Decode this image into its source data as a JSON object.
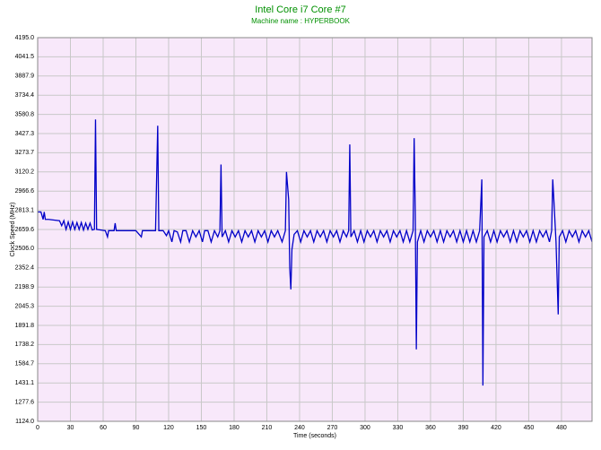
{
  "chart_data": {
    "type": "line",
    "title": "Intel Core i7 Core #7",
    "subtitle": "Machine name : HYPERBOOK",
    "x_label": "Time (seconds)",
    "y_label": "Clock Speed (MHz)",
    "color": "#0000c8",
    "grid": true,
    "xlim": [
      0,
      508
    ],
    "xticks": [
      0,
      30,
      60,
      90,
      120,
      150,
      180,
      210,
      240,
      270,
      300,
      330,
      360,
      390,
      420,
      450,
      480
    ],
    "ylim": [
      1124,
      4195
    ],
    "yticks": [
      {
        "value": 1124,
        "label": "1124.0"
      },
      1277.6,
      1431.1,
      1584.7,
      1738.2,
      1891.8,
      2045.3,
      2198.9,
      2352.4,
      {
        "value": 2506,
        "label": "2506.0"
      },
      2659.6,
      2813.1,
      2966.6,
      3120.2,
      3273.7,
      3427.3,
      3580.8,
      3734.4,
      3887.9,
      4041.5,
      {
        "value": 4195,
        "label": "4195.0"
      }
    ],
    "x": [
      0,
      3,
      5,
      6,
      7,
      10,
      15,
      20,
      22,
      24,
      26,
      28,
      30,
      32,
      34,
      36,
      38,
      40,
      42,
      44,
      46,
      48,
      50,
      52,
      53,
      54,
      58,
      62,
      64,
      65,
      70,
      71,
      72,
      80,
      90,
      95,
      96,
      100,
      108,
      110,
      111,
      115,
      118,
      120,
      123,
      125,
      128,
      131,
      133,
      136,
      139,
      142,
      145,
      148,
      151,
      153,
      156,
      159,
      162,
      165,
      167,
      168,
      169,
      172,
      175,
      178,
      181,
      184,
      187,
      190,
      193,
      196,
      199,
      202,
      205,
      208,
      211,
      214,
      217,
      220,
      224,
      227,
      228,
      230,
      231,
      232,
      233,
      235,
      238,
      241,
      244,
      247,
      250,
      253,
      256,
      259,
      262,
      265,
      268,
      271,
      274,
      277,
      280,
      283,
      285,
      286,
      287,
      290,
      293,
      296,
      299,
      302,
      305,
      308,
      311,
      314,
      317,
      320,
      323,
      326,
      329,
      332,
      335,
      338,
      341,
      344,
      345,
      346,
      347,
      348,
      351,
      354,
      357,
      360,
      363,
      366,
      369,
      372,
      375,
      378,
      381,
      384,
      387,
      390,
      393,
      396,
      399,
      402,
      405,
      407,
      408,
      409,
      412,
      415,
      418,
      421,
      424,
      427,
      430,
      433,
      436,
      439,
      442,
      445,
      448,
      451,
      454,
      457,
      460,
      463,
      466,
      469,
      471,
      472,
      473,
      475,
      477,
      478,
      481,
      484,
      487,
      490,
      493,
      496,
      499,
      502,
      505,
      508
    ],
    "values": [
      2800,
      2800,
      2740,
      2800,
      2740,
      2740,
      2735,
      2730,
      2690,
      2730,
      2660,
      2720,
      2660,
      2720,
      2660,
      2715,
      2660,
      2715,
      2655,
      2710,
      2660,
      2710,
      2655,
      2660,
      3540,
      2660,
      2655,
      2650,
      2600,
      2650,
      2650,
      2710,
      2650,
      2650,
      2650,
      2600,
      2650,
      2650,
      2650,
      3490,
      2650,
      2650,
      2610,
      2650,
      2560,
      2650,
      2640,
      2560,
      2650,
      2650,
      2560,
      2650,
      2600,
      2650,
      2560,
      2650,
      2650,
      2560,
      2650,
      2600,
      2650,
      3180,
      2600,
      2650,
      2560,
      2650,
      2600,
      2650,
      2560,
      2650,
      2600,
      2650,
      2560,
      2650,
      2600,
      2650,
      2560,
      2650,
      2600,
      2650,
      2560,
      2650,
      3120,
      2900,
      2350,
      2180,
      2500,
      2620,
      2650,
      2560,
      2650,
      2600,
      2650,
      2560,
      2650,
      2600,
      2650,
      2560,
      2650,
      2600,
      2650,
      2560,
      2650,
      2600,
      2650,
      3340,
      2600,
      2650,
      2560,
      2650,
      2560,
      2650,
      2600,
      2650,
      2560,
      2650,
      2600,
      2650,
      2560,
      2650,
      2600,
      2650,
      2560,
      2650,
      2560,
      2650,
      3390,
      2800,
      1700,
      2560,
      2650,
      2560,
      2650,
      2600,
      2650,
      2560,
      2650,
      2560,
      2650,
      2600,
      2650,
      2560,
      2650,
      2560,
      2650,
      2560,
      2650,
      2560,
      2650,
      3060,
      1410,
      2600,
      2650,
      2560,
      2650,
      2560,
      2650,
      2600,
      2650,
      2560,
      2650,
      2560,
      2650,
      2600,
      2650,
      2560,
      2650,
      2560,
      2650,
      2600,
      2650,
      2560,
      2650,
      3060,
      2900,
      2560,
      1980,
      2600,
      2650,
      2560,
      2650,
      2600,
      2650,
      2560,
      2650,
      2600,
      2650,
      2560
    ]
  }
}
